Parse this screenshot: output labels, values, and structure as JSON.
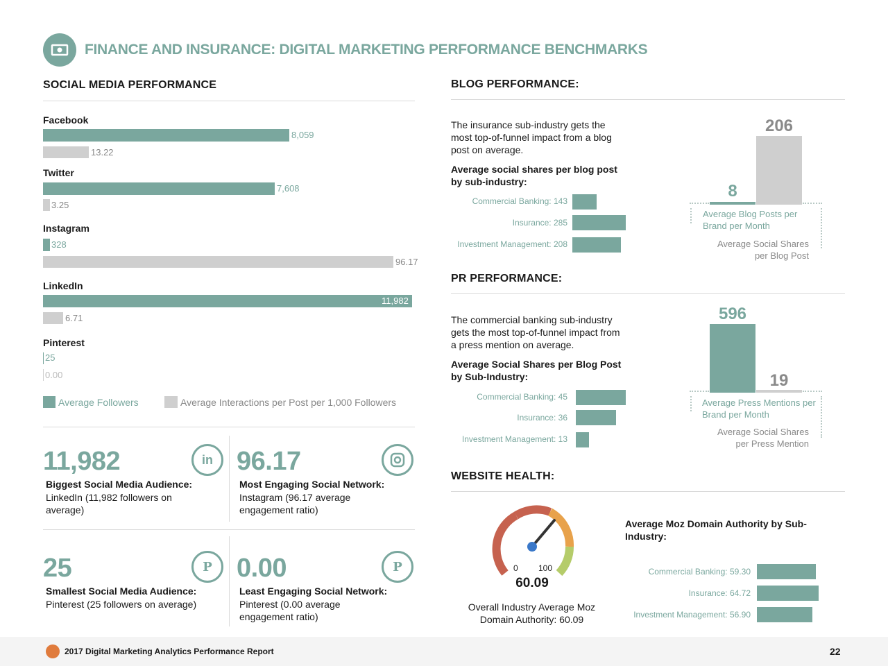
{
  "header": {
    "title": "FINANCE AND INSURANCE: DIGITAL MARKETING PERFORMANCE BENCHMARKS",
    "icon": "money-icon"
  },
  "social": {
    "title": "SOCIAL MEDIA PERFORMANCE",
    "networks": [
      {
        "name": "Facebook",
        "followers": "8,059",
        "interactions": "13.22"
      },
      {
        "name": "Twitter",
        "followers": "7,608",
        "interactions": "3.25"
      },
      {
        "name": "Instagram",
        "followers": "328",
        "interactions": "96.17"
      },
      {
        "name": "LinkedIn",
        "followers": "11,982",
        "interactions": "6.71"
      },
      {
        "name": "Pinterest",
        "followers": "25",
        "interactions": "0.00"
      }
    ],
    "legend": {
      "followers": "Average Followers",
      "interactions": "Average Interactions per Post per 1,000 Followers"
    }
  },
  "stats": [
    {
      "value": "11,982",
      "heading": "Biggest Social Media Audience:",
      "desc": "LinkedIn (11,982 followers on average)",
      "icon": "linkedin-icon"
    },
    {
      "value": "96.17",
      "heading": "Most Engaging Social Network:",
      "desc": "Instagram (96.17 average engagement ratio)",
      "icon": "instagram-icon"
    },
    {
      "value": "25",
      "heading": "Smallest Social Media Audience:",
      "desc": "Pinterest (25 followers on average)",
      "icon": "pinterest-icon"
    },
    {
      "value": "0.00",
      "heading": "Least Engaging Social Network:",
      "desc": "Pinterest (0.00 average engagement ratio)",
      "icon": "pinterest-icon"
    }
  ],
  "blog": {
    "title": "BLOG PERFORMANCE:",
    "text": "The insurance sub-industry gets the most top-of-funnel impact from a blog post on average.",
    "subhead": "Average social shares per blog post by sub-industry:",
    "rows": [
      {
        "label": "Commercial Banking: 143",
        "value": 143
      },
      {
        "label": "Insurance: 285",
        "value": 285
      },
      {
        "label": "Investment Management: 208",
        "value": 208
      }
    ],
    "bar_left_value": "8",
    "bar_right_value": "206",
    "bar_left_label": "Average Blog Posts per Brand per Month",
    "bar_right_label": "Average Social Shares per Blog Post"
  },
  "pr": {
    "title": "PR PERFORMANCE:",
    "text": "The commercial banking sub-industry gets the most top-of-funnel impact from a press mention on average.",
    "subhead": "Average Social Shares per Blog Post by Sub-Industry:",
    "rows": [
      {
        "label": "Commercial Banking: 45",
        "value": 45
      },
      {
        "label": "Insurance: 36",
        "value": 36
      },
      {
        "label": "Investment Management: 13",
        "value": 13
      }
    ],
    "bar_left_value": "596",
    "bar_right_value": "19",
    "bar_left_label": "Average Press Mentions per Brand per Month",
    "bar_right_label": "Average Social Shares per Press Mention"
  },
  "website": {
    "title": "WEBSITE HEALTH:",
    "gauge_min": "0",
    "gauge_max": "100",
    "gauge_value": "60.09",
    "gauge_caption": "Overall Industry Average Moz Domain Authority: 60.09",
    "moz_title": "Average Moz Domain Authority by Sub-Industry:",
    "rows": [
      {
        "label": "Commercial Banking: 59.30",
        "value": 59.3
      },
      {
        "label": "Insurance: 64.72",
        "value": 64.72
      },
      {
        "label": "Investment Management: 56.90",
        "value": 56.9
      }
    ]
  },
  "footer": {
    "report": "2017 Digital Marketing Analytics Performance Report",
    "page": "22"
  },
  "colors": {
    "teal": "#7aa79e",
    "gray": "#cfcfcf"
  }
}
